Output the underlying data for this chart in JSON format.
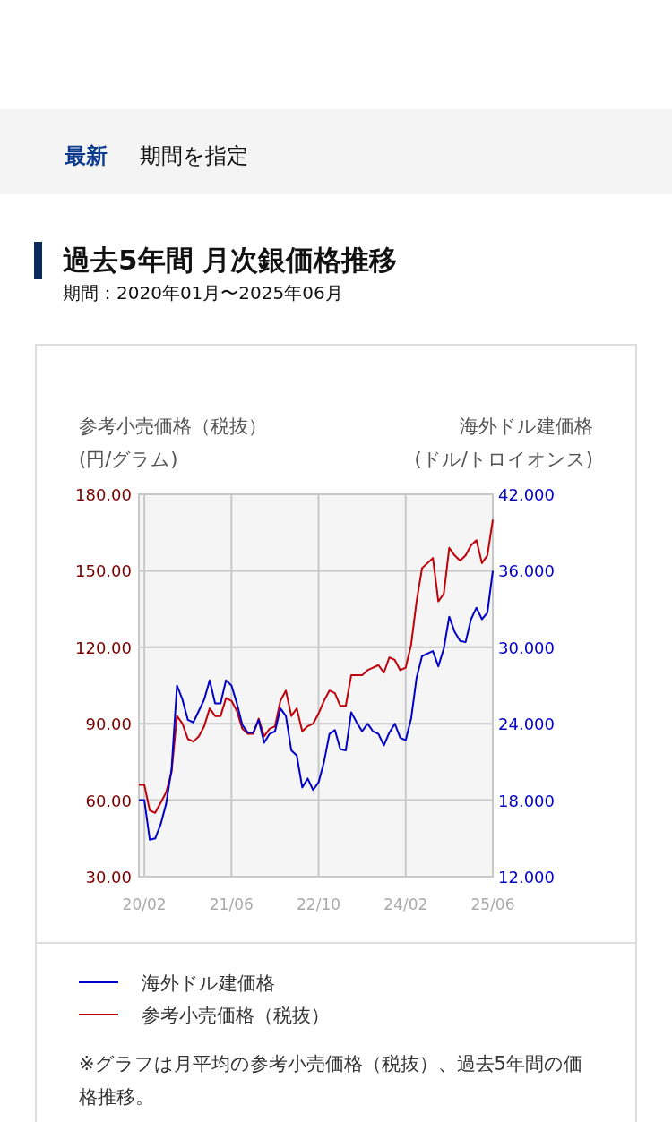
{
  "chart_data": {
    "type": "line",
    "title": "過去5年間 月次銀価格推移",
    "subtitle": "期間：2020年01月〜2025年06月",
    "annotations": [
      "最新",
      "期間を指定",
      "※グラフは月平均の参考小売価格（税抜）、過去5年間の価格推移。"
    ],
    "ylabel": "参考小売価格（税抜）\n(円/グラム)",
    "y2label": "海外ドル建価格\n(ドル/トロイオンス)",
    "x": [
      "2020-01",
      "2020-02",
      "2020-03",
      "2020-04",
      "2020-05",
      "2020-06",
      "2020-07",
      "2020-08",
      "2020-09",
      "2020-10",
      "2020-11",
      "2020-12",
      "2021-01",
      "2021-02",
      "2021-03",
      "2021-04",
      "2021-05",
      "2021-06",
      "2021-07",
      "2021-08",
      "2021-09",
      "2021-10",
      "2021-11",
      "2021-12",
      "2022-01",
      "2022-02",
      "2022-03",
      "2022-04",
      "2022-05",
      "2022-06",
      "2022-07",
      "2022-08",
      "2022-09",
      "2022-10",
      "2022-11",
      "2022-12",
      "2023-01",
      "2023-02",
      "2023-03",
      "2023-04",
      "2023-05",
      "2023-06",
      "2023-07",
      "2023-08",
      "2023-09",
      "2023-10",
      "2023-11",
      "2023-12",
      "2024-01",
      "2024-02",
      "2024-03",
      "2024-04",
      "2024-05",
      "2024-06",
      "2024-07",
      "2024-08",
      "2024-09",
      "2024-10",
      "2024-11",
      "2024-12",
      "2025-01",
      "2025-02",
      "2025-03",
      "2025-04",
      "2025-05",
      "2025-06"
    ],
    "xlim": [
      "2020-01",
      "2025-06"
    ],
    "xticks": [
      {
        "value": "2020-02",
        "label": "20/02"
      },
      {
        "value": "2021-06",
        "label": "21/06"
      },
      {
        "value": "2022-10",
        "label": "22/10"
      },
      {
        "value": "2024-02",
        "label": "24/02"
      },
      {
        "value": "2025-06",
        "label": "25/06"
      }
    ],
    "ylim": [
      30,
      180
    ],
    "yticks": [
      {
        "value": 30,
        "label": "30.00"
      },
      {
        "value": 60,
        "label": "60.00"
      },
      {
        "value": 90,
        "label": "90.00"
      },
      {
        "value": 120,
        "label": "120.00"
      },
      {
        "value": 150,
        "label": "150.00"
      },
      {
        "value": 180,
        "label": "180.00"
      }
    ],
    "y2lim": [
      12,
      42
    ],
    "y2ticks": [
      {
        "value": 12,
        "label": "12.000"
      },
      {
        "value": 18,
        "label": "18.000"
      },
      {
        "value": 24,
        "label": "24.000"
      },
      {
        "value": 30,
        "label": "30.000"
      },
      {
        "value": 36,
        "label": "36.000"
      },
      {
        "value": 42,
        "label": "42.000"
      }
    ],
    "grid": true,
    "legend": "bottom",
    "marker": "none",
    "line_style": "solid",
    "series": [
      {
        "name": "海外ドル建価格",
        "color": "#0000c8",
        "axis": "y2",
        "values": [
          18.0,
          18.0,
          14.9,
          15.0,
          16.1,
          17.7,
          20.4,
          27.0,
          25.9,
          24.3,
          24.1,
          25.0,
          25.9,
          27.4,
          25.6,
          25.6,
          27.4,
          27.0,
          25.6,
          23.9,
          23.3,
          23.3,
          24.3,
          22.5,
          23.2,
          23.4,
          25.2,
          24.6,
          21.9,
          21.5,
          19.0,
          19.7,
          18.8,
          19.4,
          21.0,
          23.2,
          23.5,
          22.0,
          21.9,
          24.9,
          24.1,
          23.4,
          24.0,
          23.4,
          23.2,
          22.3,
          23.3,
          24.0,
          22.9,
          22.7,
          24.4,
          27.6,
          29.3,
          29.5,
          29.7,
          28.5,
          29.9,
          32.4,
          31.2,
          30.5,
          30.4,
          32.2,
          33.1,
          32.2,
          32.7,
          36.0
        ]
      },
      {
        "name": "参考小売価格（税抜）",
        "color": "#c0000a",
        "values": [
          66,
          66,
          56,
          55,
          59,
          63,
          71,
          93,
          90,
          84,
          83,
          85,
          89,
          96,
          93,
          93,
          100,
          99,
          95,
          88,
          86,
          86,
          92,
          85,
          88,
          89,
          99,
          103,
          93,
          96,
          87,
          89,
          90,
          94,
          99,
          103,
          102,
          97,
          97,
          109,
          109,
          109,
          111,
          112,
          113,
          110,
          116,
          115,
          111,
          112,
          121,
          138,
          151,
          153,
          155,
          138,
          141,
          159,
          156,
          154,
          156,
          160,
          162,
          153,
          156,
          170
        ]
      }
    ]
  }
}
